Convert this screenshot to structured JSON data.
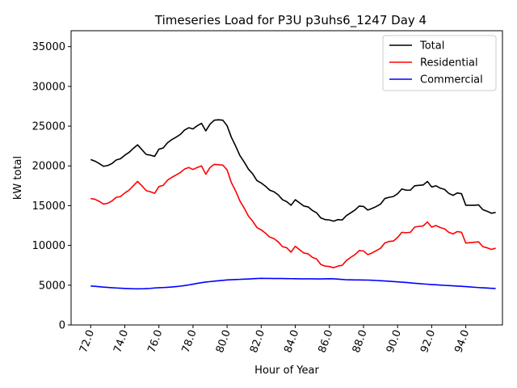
{
  "chart_data": {
    "type": "line",
    "title": "Timeseries Load for P3U p3uhs6_1247  Day 4",
    "xlabel": "Hour of Year",
    "ylabel": "kW total",
    "xlim": [
      70.85,
      96.15
    ],
    "ylim": [
      0,
      37000
    ],
    "xticks": [
      72,
      74,
      76,
      78,
      80,
      82,
      84,
      86,
      88,
      90,
      92,
      94
    ],
    "xtick_labels": [
      "72.0",
      "74.0",
      "76.0",
      "78.0",
      "80.0",
      "82.0",
      "84.0",
      "86.0",
      "88.0",
      "90.0",
      "92.0",
      "94.0"
    ],
    "yticks": [
      0,
      5000,
      10000,
      15000,
      20000,
      25000,
      30000,
      35000
    ],
    "ytick_labels": [
      "0",
      "5000",
      "10000",
      "15000",
      "20000",
      "25000",
      "30000",
      "35000"
    ],
    "legend_position": "top-right",
    "x": [
      72.0,
      72.25,
      72.5,
      72.75,
      73.0,
      73.25,
      73.5,
      73.75,
      74.0,
      74.25,
      74.5,
      74.75,
      75.0,
      75.25,
      75.5,
      75.75,
      76.0,
      76.25,
      76.5,
      76.75,
      77.0,
      77.25,
      77.5,
      77.75,
      78.0,
      78.25,
      78.5,
      78.75,
      79.0,
      79.25,
      79.5,
      79.75,
      80.0,
      80.25,
      80.5,
      80.75,
      81.0,
      81.25,
      81.5,
      81.75,
      82.0,
      82.25,
      82.5,
      82.75,
      83.0,
      83.25,
      83.5,
      83.75,
      84.0,
      84.25,
      84.5,
      84.75,
      85.0,
      85.25,
      85.5,
      85.75,
      86.0,
      86.25,
      86.5,
      86.75,
      87.0,
      87.25,
      87.5,
      87.75,
      88.0,
      88.25,
      88.5,
      88.75,
      89.0,
      89.25,
      89.5,
      89.75,
      90.0,
      90.25,
      90.5,
      90.75,
      91.0,
      91.25,
      91.5,
      91.75,
      92.0,
      92.25,
      92.5,
      92.75,
      93.0,
      93.25,
      93.5,
      93.75,
      94.0,
      94.25,
      94.5,
      94.75,
      95.0,
      95.25,
      95.5,
      95.75
    ],
    "series": [
      {
        "name": "Total",
        "color": "#000000",
        "values": [
          20800,
          20600,
          20300,
          19950,
          20050,
          20300,
          20750,
          20900,
          21350,
          21700,
          22200,
          22650,
          22050,
          21450,
          21350,
          21200,
          22100,
          22250,
          22900,
          23300,
          23600,
          23950,
          24500,
          24800,
          24650,
          25050,
          25350,
          24400,
          25250,
          25750,
          25800,
          25750,
          25050,
          23600,
          22500,
          21300,
          20500,
          19600,
          19000,
          18150,
          17850,
          17450,
          16950,
          16750,
          16350,
          15750,
          15500,
          15050,
          15750,
          15350,
          14950,
          14850,
          14400,
          14100,
          13450,
          13250,
          13200,
          13050,
          13250,
          13200,
          13750,
          14100,
          14450,
          14950,
          14900,
          14450,
          14650,
          14900,
          15200,
          15900,
          16050,
          16150,
          16500,
          17100,
          16950,
          16950,
          17500,
          17550,
          17600,
          18050,
          17350,
          17500,
          17200,
          17050,
          16550,
          16300,
          16600,
          16500,
          15050,
          15050,
          15050,
          15100,
          14500,
          14300,
          14050,
          14150
        ]
      },
      {
        "name": "Residential",
        "color": "#ff0000",
        "values": [
          15900,
          15800,
          15550,
          15200,
          15300,
          15600,
          16050,
          16150,
          16600,
          16950,
          17500,
          18050,
          17500,
          16900,
          16750,
          16550,
          17400,
          17550,
          18200,
          18550,
          18850,
          19150,
          19600,
          19800,
          19550,
          19800,
          20000,
          18950,
          19800,
          20200,
          20150,
          20100,
          19500,
          17900,
          16850,
          15600,
          14700,
          13700,
          13050,
          12250,
          11950,
          11550,
          11050,
          10850,
          10450,
          9850,
          9700,
          9150,
          9900,
          9450,
          9050,
          8950,
          8500,
          8300,
          7600,
          7400,
          7350,
          7200,
          7400,
          7500,
          8100,
          8500,
          8850,
          9350,
          9300,
          8850,
          9050,
          9350,
          9650,
          10300,
          10500,
          10550,
          11000,
          11650,
          11600,
          11650,
          12300,
          12400,
          12450,
          12950,
          12300,
          12500,
          12250,
          12100,
          11650,
          11450,
          11750,
          11650,
          10300,
          10350,
          10400,
          10450,
          9850,
          9700,
          9500,
          9650
        ]
      },
      {
        "name": "Commercial",
        "color": "#0000ff",
        "values": [
          4900,
          4860,
          4810,
          4760,
          4720,
          4680,
          4650,
          4620,
          4590,
          4570,
          4550,
          4540,
          4550,
          4570,
          4600,
          4650,
          4680,
          4700,
          4730,
          4770,
          4820,
          4880,
          4950,
          5030,
          5130,
          5230,
          5320,
          5390,
          5450,
          5510,
          5560,
          5610,
          5660,
          5690,
          5710,
          5730,
          5760,
          5780,
          5810,
          5840,
          5860,
          5850,
          5850,
          5840,
          5840,
          5840,
          5830,
          5820,
          5810,
          5800,
          5800,
          5800,
          5800,
          5790,
          5790,
          5800,
          5810,
          5800,
          5760,
          5720,
          5680,
          5670,
          5660,
          5660,
          5650,
          5640,
          5620,
          5590,
          5560,
          5530,
          5500,
          5460,
          5420,
          5380,
          5340,
          5290,
          5240,
          5200,
          5160,
          5120,
          5080,
          5050,
          5010,
          4980,
          4950,
          4920,
          4890,
          4860,
          4820,
          4780,
          4740,
          4700,
          4670,
          4640,
          4610,
          4590
        ]
      }
    ]
  }
}
